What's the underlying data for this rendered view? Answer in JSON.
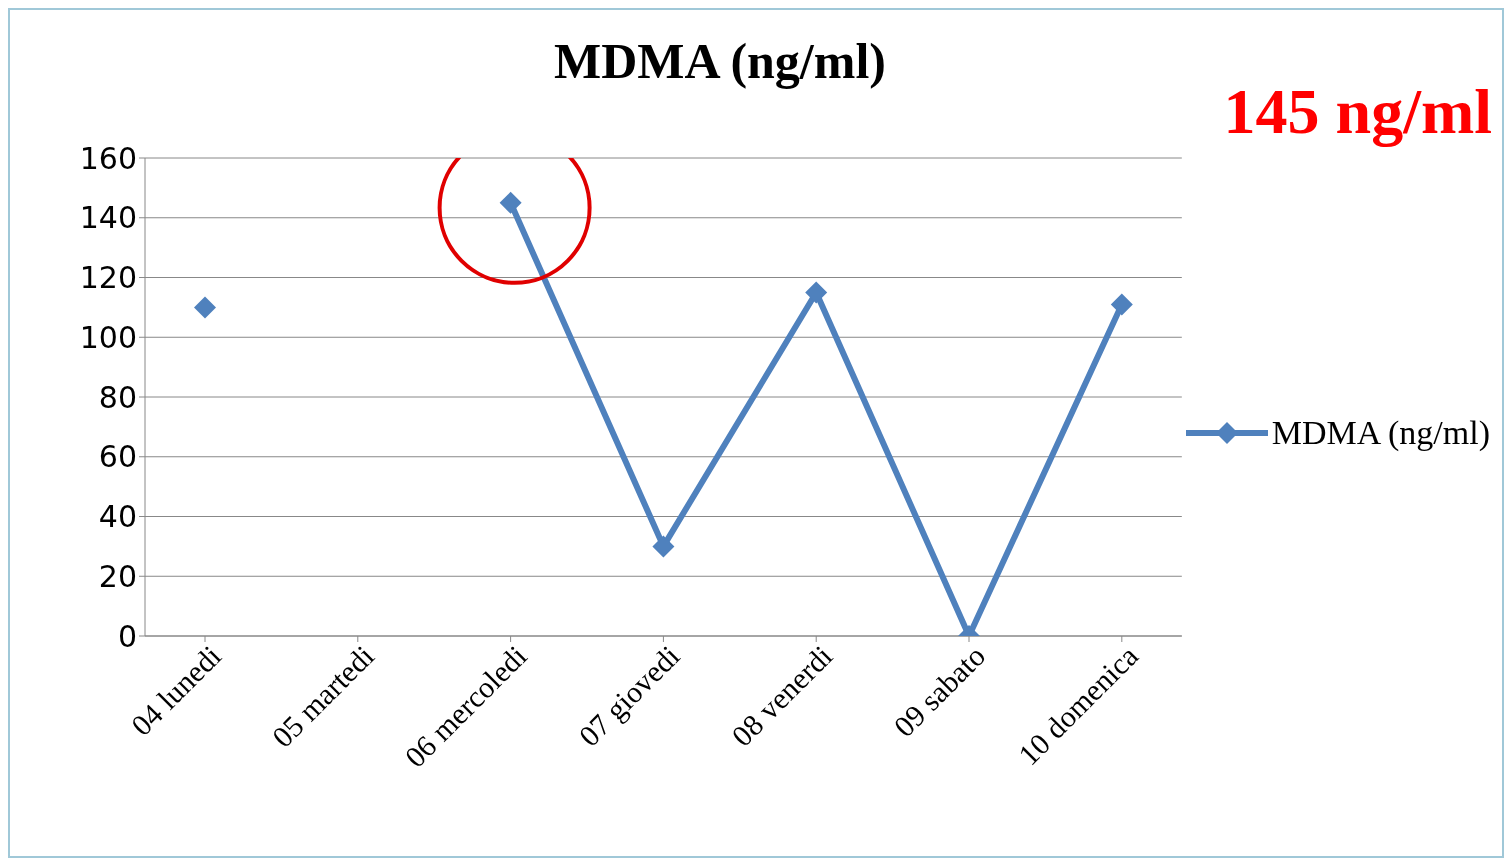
{
  "chart_data": {
    "type": "line",
    "title": "MDMA (ng/ml)",
    "categories": [
      "04 lunedi",
      "05 martedi",
      "06 mercoledi",
      "07 giovedi",
      "08 venerdi",
      "09 sabato",
      "10 domenica"
    ],
    "series": [
      {
        "name": "MDMA (ng/ml)",
        "color": "#4f81bd",
        "values": [
          110,
          null,
          145,
          30,
          115,
          0,
          111
        ]
      }
    ],
    "ylim": [
      0,
      160
    ],
    "yticks": [
      0,
      20,
      40,
      60,
      80,
      100,
      120,
      140,
      160
    ],
    "grid": "y",
    "legend": "right",
    "marker": "diamond",
    "line_style": "solid",
    "annotations": [
      "145 ng/ml"
    ]
  }
}
